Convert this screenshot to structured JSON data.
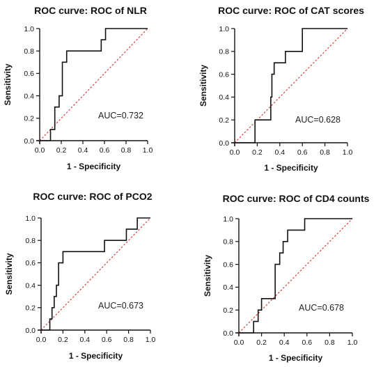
{
  "chart_data": [
    {
      "type": "line",
      "title": "ROC curve: ROC of NLR",
      "xlabel": "1 - Specificity",
      "ylabel": "Sensitivity",
      "xlim": [
        0,
        1.0
      ],
      "ylim": [
        0,
        1.0
      ],
      "xticks": [
        "0.0",
        "0.2",
        "0.4",
        "0.6",
        "0.8",
        "1.0"
      ],
      "yticks": [
        "0.0",
        "0.2",
        "0.4",
        "0.6",
        "0.8",
        "1.0"
      ],
      "annotation": "AUC=0.732",
      "grid": false,
      "roc": {
        "x": [
          0,
          0.1,
          0.1,
          0.14,
          0.14,
          0.18,
          0.18,
          0.21,
          0.21,
          0.25,
          0.25,
          0.57,
          0.57,
          0.61,
          0.61,
          1.0
        ],
        "y": [
          0,
          0,
          0.1,
          0.1,
          0.3,
          0.3,
          0.4,
          0.4,
          0.7,
          0.7,
          0.8,
          0.8,
          0.9,
          0.9,
          1.0,
          1.0
        ],
        "color": "#111111"
      },
      "reference": {
        "x": [
          0,
          1
        ],
        "y": [
          0,
          1
        ],
        "color": "#d62a2a"
      }
    },
    {
      "type": "line",
      "title": "ROC curve: ROC of CAT scores",
      "xlabel": "1 - Specificity",
      "ylabel": "Sensitivity",
      "xlim": [
        0,
        1.0
      ],
      "ylim": [
        0,
        1.0
      ],
      "xticks": [
        "0.0",
        "0.2",
        "0.4",
        "0.6",
        "0.8",
        "1.0"
      ],
      "yticks": [
        "0.0",
        "0.2",
        "0.4",
        "0.6",
        "0.8",
        "1.0"
      ],
      "annotation": "AUC=0.628",
      "grid": false,
      "roc": {
        "x": [
          0,
          0.18,
          0.18,
          0.32,
          0.32,
          0.33,
          0.33,
          0.35,
          0.35,
          0.45,
          0.45,
          0.6,
          0.6,
          1.0
        ],
        "y": [
          0,
          0,
          0.2,
          0.2,
          0.4,
          0.4,
          0.6,
          0.6,
          0.7,
          0.7,
          0.8,
          0.8,
          1.0,
          1.0
        ],
        "color": "#111111"
      },
      "reference": {
        "x": [
          0,
          1
        ],
        "y": [
          0,
          1
        ],
        "color": "#d62a2a"
      }
    },
    {
      "type": "line",
      "title": "ROC curve: ROC of PCO2",
      "xlabel": "1 - Specificity",
      "ylabel": "Sensitivity",
      "xlim": [
        0,
        1.0
      ],
      "ylim": [
        0,
        1.0
      ],
      "xticks": [
        "0.0",
        "0.2",
        "0.4",
        "0.6",
        "0.8",
        "1.0"
      ],
      "yticks": [
        "0.0",
        "0.2",
        "0.4",
        "0.6",
        "0.8",
        "1.0"
      ],
      "annotation": "AUC=0.673",
      "grid": false,
      "roc": {
        "x": [
          0,
          0.08,
          0.08,
          0.1,
          0.1,
          0.12,
          0.12,
          0.14,
          0.14,
          0.16,
          0.16,
          0.2,
          0.2,
          0.58,
          0.58,
          0.78,
          0.78,
          0.88,
          0.88,
          1.0
        ],
        "y": [
          0,
          0,
          0.1,
          0.1,
          0.2,
          0.2,
          0.3,
          0.3,
          0.4,
          0.4,
          0.6,
          0.6,
          0.7,
          0.7,
          0.8,
          0.8,
          0.9,
          0.9,
          1.0,
          1.0
        ],
        "color": "#111111"
      },
      "reference": {
        "x": [
          0,
          1
        ],
        "y": [
          0,
          1
        ],
        "color": "#d62a2a"
      }
    },
    {
      "type": "line",
      "title": "ROC curve: ROC of CD4 counts",
      "xlabel": "1 - Specificity",
      "ylabel": "Sensitivity",
      "xlim": [
        0,
        1.0
      ],
      "ylim": [
        0,
        1.0
      ],
      "xticks": [
        "0.0",
        "0.2",
        "0.4",
        "0.6",
        "0.8",
        "1.0"
      ],
      "yticks": [
        "0.0",
        "0.2",
        "0.4",
        "0.6",
        "0.8",
        "1.0"
      ],
      "annotation": "AUC=0.678",
      "grid": false,
      "roc": {
        "x": [
          0,
          0.13,
          0.13,
          0.17,
          0.17,
          0.2,
          0.2,
          0.32,
          0.32,
          0.36,
          0.36,
          0.39,
          0.39,
          0.43,
          0.43,
          0.58,
          0.58,
          1.0
        ],
        "y": [
          0,
          0,
          0.1,
          0.1,
          0.2,
          0.2,
          0.3,
          0.3,
          0.6,
          0.6,
          0.7,
          0.7,
          0.8,
          0.8,
          0.9,
          0.9,
          1.0,
          1.0
        ],
        "color": "#111111"
      },
      "reference": {
        "x": [
          0,
          1
        ],
        "y": [
          0,
          1
        ],
        "color": "#d62a2a"
      }
    }
  ]
}
